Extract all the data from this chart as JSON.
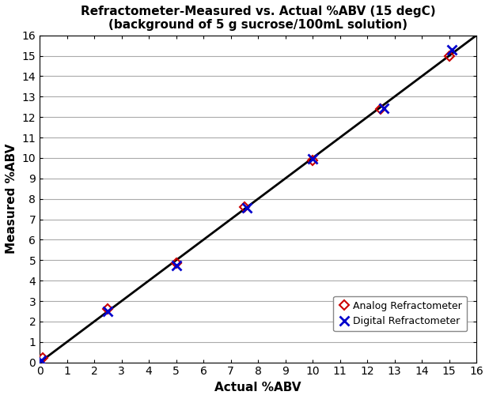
{
  "title_line1": "Refractometer-Measured vs. Actual %ABV (15 degC)",
  "title_line2": "(background of 5 g sucrose/100mL solution)",
  "xlabel": "Actual %ABV",
  "ylabel": "Measured %ABV",
  "xlim": [
    0,
    16
  ],
  "ylim": [
    0,
    16
  ],
  "xticks": [
    0,
    1,
    2,
    3,
    4,
    5,
    6,
    7,
    8,
    9,
    10,
    11,
    12,
    13,
    14,
    15,
    16
  ],
  "yticks": [
    0,
    1,
    2,
    3,
    4,
    5,
    6,
    7,
    8,
    9,
    10,
    11,
    12,
    13,
    14,
    15,
    16
  ],
  "diagonal_line": {
    "x": [
      0,
      16
    ],
    "y": [
      0,
      16
    ],
    "color": "#000000",
    "linewidth": 2.0
  },
  "analog": {
    "x": [
      0.1,
      2.5,
      5.0,
      7.5,
      10.0,
      12.5,
      15.0
    ],
    "y": [
      0.2,
      2.6,
      4.85,
      7.6,
      9.9,
      12.4,
      15.0
    ],
    "color": "#cc0000",
    "marker": "D",
    "markersize": 6,
    "label": "Analog Refractometer",
    "markerfacecolor": "none",
    "markeredgewidth": 1.5
  },
  "digital": {
    "x": [
      0.05,
      2.5,
      5.0,
      7.6,
      10.0,
      12.6,
      15.1
    ],
    "y": [
      0.1,
      2.5,
      4.75,
      7.55,
      9.95,
      12.45,
      15.3
    ],
    "color": "#0000cc",
    "marker": "x",
    "markersize": 8,
    "label": "Digital Refractometer",
    "markeredgewidth": 2.0
  },
  "background_color": "#ffffff",
  "grid_color": "#aaaaaa",
  "title_fontsize": 11,
  "axis_label_fontsize": 11,
  "tick_fontsize": 10,
  "legend_fontsize": 9
}
